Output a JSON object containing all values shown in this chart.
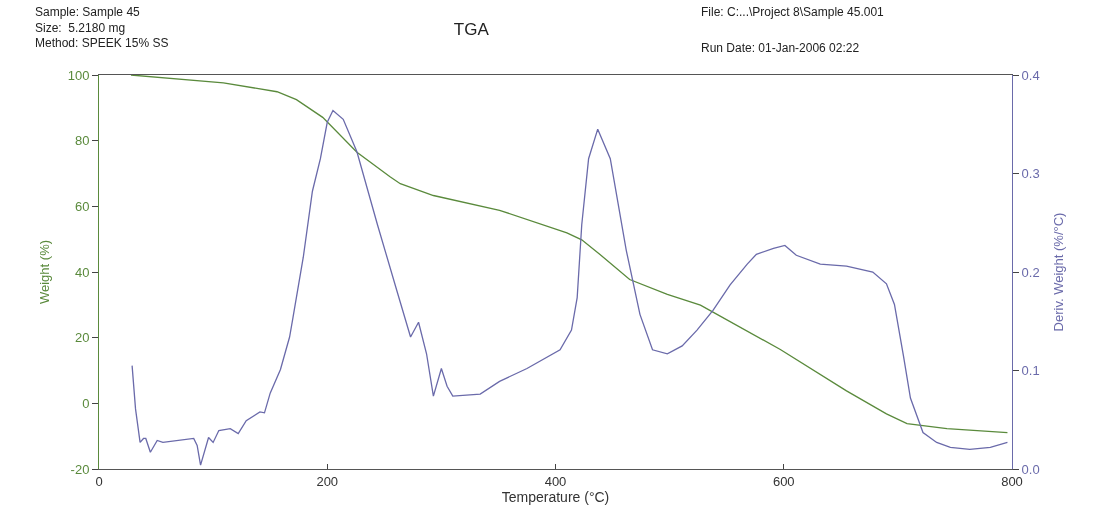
{
  "chart_data": {
    "type": "line",
    "title": "TGA",
    "xlabel": "Temperature (°C)",
    "ylabel": "Weight (%)",
    "y2label": "Deriv. Weight (%/°C)",
    "annotations": [
      "Sample: Sample 45\nSize:  5.2180 mg\nMethod: SPEEK 15% SS",
      "File: C:...\\Project 8\\Sample 45.001",
      "Run Date: 01-Jan-2006 02:22"
    ],
    "xlim": [
      0,
      800
    ],
    "xticks": [
      0,
      200,
      400,
      600,
      800
    ],
    "ylim": [
      -20,
      100
    ],
    "yticks": [
      -20,
      0,
      20,
      40,
      60,
      80,
      100
    ],
    "y2lim": [
      0,
      0.4
    ],
    "y2ticks": [
      {
        "value": 0,
        "label": "0.0"
      },
      0.1,
      0.2,
      0.3,
      0.4
    ],
    "marker": "none",
    "line_style": "solid",
    "series": [
      {
        "color": "#5a8a3c",
        "x": [
          28,
          109,
          156,
          173,
          196,
          226,
          255,
          264,
          293,
          351,
          410,
          423,
          439,
          465,
          498,
          527,
          538,
          597,
          655,
          690,
          708,
          743,
          796
        ],
        "values": [
          100,
          97.6,
          94.9,
          92.5,
          87.1,
          76.5,
          69.0,
          66.9,
          63.3,
          58.8,
          51.9,
          49.8,
          45.3,
          37.7,
          33.2,
          29.9,
          27.8,
          16.4,
          3.8,
          -3.2,
          -6.2,
          -7.7,
          -8.9
        ]
      },
      {
        "color": "#6a6aaa",
        "axis": "y2",
        "x": [
          29,
          32,
          36,
          39,
          41,
          45,
          51,
          56,
          83,
          86,
          89,
          96,
          100,
          105,
          115,
          122,
          129,
          141,
          145,
          150,
          159,
          167,
          170,
          179,
          187,
          194,
          200,
          205,
          214,
          226,
          244,
          261,
          273,
          280,
          287,
          293,
          300,
          305,
          310,
          334,
          351,
          375,
          404,
          414,
          419,
          423,
          429,
          437,
          448,
          462,
          474,
          485,
          498,
          511,
          524,
          538,
          553,
          568,
          576,
          591,
          601,
          611,
          632,
          655,
          678,
          690,
          697,
          705,
          711,
          722,
          734,
          746,
          763,
          781,
          796
        ],
        "values": [
          0.105,
          0.061,
          0.027,
          0.031,
          0.031,
          0.017,
          0.029,
          0.027,
          0.031,
          0.024,
          0.004,
          0.032,
          0.027,
          0.039,
          0.041,
          0.036,
          0.049,
          0.058,
          0.057,
          0.077,
          0.101,
          0.134,
          0.154,
          0.215,
          0.282,
          0.315,
          0.352,
          0.364,
          0.355,
          0.322,
          0.248,
          0.181,
          0.134,
          0.149,
          0.117,
          0.074,
          0.102,
          0.084,
          0.074,
          0.076,
          0.089,
          0.102,
          0.121,
          0.141,
          0.174,
          0.248,
          0.315,
          0.345,
          0.315,
          0.222,
          0.157,
          0.121,
          0.117,
          0.125,
          0.141,
          0.161,
          0.187,
          0.208,
          0.218,
          0.224,
          0.227,
          0.217,
          0.208,
          0.206,
          0.2,
          0.188,
          0.167,
          0.114,
          0.072,
          0.037,
          0.027,
          0.022,
          0.02,
          0.022,
          0.027
        ]
      }
    ]
  }
}
